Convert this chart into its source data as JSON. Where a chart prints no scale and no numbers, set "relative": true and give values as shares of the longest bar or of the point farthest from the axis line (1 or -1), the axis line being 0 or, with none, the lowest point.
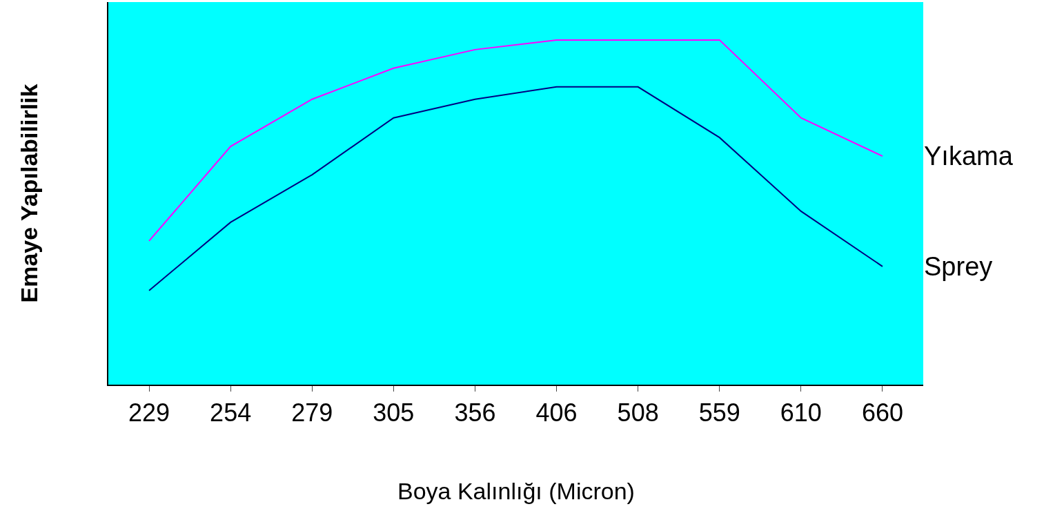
{
  "chart_data": {
    "type": "line",
    "relative": true,
    "xlabel": "Boya Kalınlığı (Micron)",
    "ylabel": "Emaye Yapılabilirlik",
    "categories": [
      "229",
      "254",
      "279",
      "305",
      "356",
      "406",
      "508",
      "559",
      "610",
      "660"
    ],
    "series": [
      {
        "name": "Yıkama",
        "color": "#ff00ff",
        "values": [
          0.417,
          0.691,
          0.828,
          0.918,
          0.972,
          1,
          1,
          1,
          0.774,
          0.663
        ]
      },
      {
        "name": "Sprey",
        "color": "#000080",
        "values": [
          0.273,
          0.471,
          0.609,
          0.774,
          0.828,
          0.864,
          0.864,
          0.717,
          0.503,
          0.343
        ]
      }
    ],
    "grid": false,
    "legend": false,
    "marker": "none",
    "line_style": "solid"
  }
}
